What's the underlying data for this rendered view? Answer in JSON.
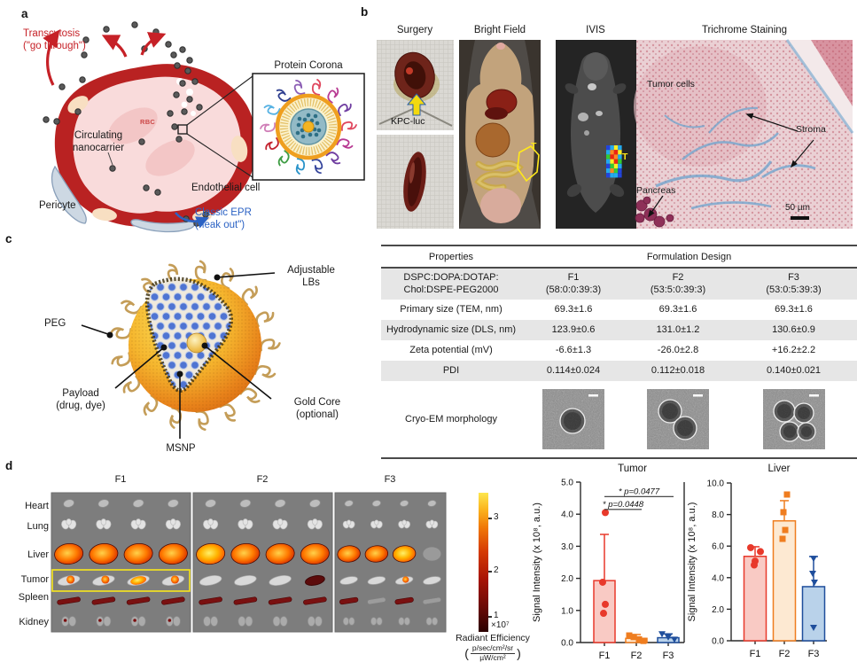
{
  "figure": {
    "panel_a_letter": "a",
    "panel_b_letter": "b",
    "panel_c_letter": "c",
    "panel_d_letter": "d"
  },
  "panels": {
    "a": {
      "transcytosis_line1": "Transcytosis",
      "transcytosis_line2": "(\"go through\")",
      "circulating_line1": "Circulating",
      "circulating_line2": "nanocarrier",
      "rbc": "RBC",
      "pericyte": "Pericyte",
      "endothelial": "Endothelial cell",
      "epr_line1": "Classic EPR",
      "epr_line2": "(\"leak out\")",
      "corona_title": "Protein Corona",
      "colors": {
        "transcytosis_red": "#c62127",
        "epr_blue": "#2b62c4",
        "vessel_red": "#b92222",
        "lumen_pink": "#f9dbdb"
      },
      "corona_colors": [
        "#e0485f",
        "#b83a92",
        "#6f3da0",
        "#35459c",
        "#2a93c9",
        "#3f9d44",
        "#c32430",
        "#d07fb8",
        "#57b2e3",
        "#2e3e8f",
        "#8c5fb5"
      ]
    },
    "b": {
      "columns": [
        "Surgery",
        "Bright Field",
        "IVIS",
        "Trichrome Staining"
      ],
      "kpc_label": "KPC-luc",
      "t_label_bf": "T",
      "t_label_ivis": "T",
      "tumor_cells": "Tumor cells",
      "stroma": "Stroma",
      "pancreas": "Pancreas",
      "scale_bar": "50 µm"
    },
    "c": {
      "adjustable_line1": "Adjustable",
      "adjustable_line2": "LBs",
      "peg": "PEG",
      "payload_line1": "Payload",
      "payload_line2": "(drug, dye)",
      "msnp": "MSNP",
      "gold_line1": "Gold Core",
      "gold_line2": "(optional)"
    },
    "table": {
      "header_properties": "Properties",
      "header_design": "Formulation Design",
      "lipid_line1": "DSPC:DOPA:DOTAP:",
      "lipid_line2": "Chol:DSPE-PEG2000",
      "formulations": [
        {
          "name": "F1",
          "ratio": "(58:0:0:39:3)"
        },
        {
          "name": "F2",
          "ratio": "(53:5:0:39:3)"
        },
        {
          "name": "F3",
          "ratio": "(53:0:5:39:3)"
        }
      ],
      "rows": [
        {
          "label": "Primary size (TEM, nm)",
          "values": [
            "69.3±1.6",
            "69.3±1.6",
            "69.3±1.6"
          ]
        },
        {
          "label": "Hydrodynamic size (DLS, nm)",
          "values": [
            "123.9±0.6",
            "131.0±1.2",
            "130.6±0.9"
          ]
        },
        {
          "label": "Zeta potential (mV)",
          "values": [
            "-6.6±1.3",
            "-26.0±2.8",
            "+16.2±2.2"
          ]
        },
        {
          "label": "PDI",
          "values": [
            "0.114±0.024",
            "0.112±0.018",
            "0.140±0.021"
          ]
        }
      ],
      "cryo_label": "Cryo-EM morphology"
    },
    "d": {
      "formulation_titles": [
        "F1",
        "F2",
        "F3"
      ],
      "organ_labels": [
        "Heart",
        "Lung",
        "Liver",
        "Tumor",
        "Spleen",
        "Kidney"
      ],
      "heat": [
        {
          "title": "F1",
          "rows": [
            [
              0,
              0,
              0,
              0
            ],
            [
              0,
              0,
              0,
              0
            ],
            [
              2,
              2,
              2,
              2
            ],
            [
              2,
              2,
              3,
              2
            ],
            [
              1,
              1,
              1,
              1
            ],
            [
              1,
              1,
              1,
              1
            ]
          ]
        },
        {
          "title": "F2",
          "rows": [
            [
              0,
              0,
              0,
              0
            ],
            [
              0,
              0,
              0,
              0
            ],
            [
              3,
              2,
              2,
              2
            ],
            [
              0,
              0,
              0,
              1
            ],
            [
              1,
              1,
              1,
              1
            ],
            [
              0,
              0,
              0,
              0
            ]
          ]
        },
        {
          "title": "F3",
          "rows": [
            [
              0,
              0,
              0,
              0
            ],
            [
              0,
              0,
              0,
              0
            ],
            [
              2,
              2,
              3,
              0
            ],
            [
              0,
              0,
              2,
              0
            ],
            [
              1,
              0,
              1,
              0
            ],
            [
              0,
              0,
              0,
              0
            ]
          ]
        }
      ],
      "colorbar": {
        "ticks": [
          "3",
          "2",
          "1"
        ],
        "exponent": "×10⁷",
        "label": "Radiant Efficiency",
        "fraction_top": "p/sec/cm²/sr",
        "fraction_bottom": "µW/cm²"
      }
    }
  },
  "chart_data": [
    {
      "type": "bar",
      "title": "Tumor",
      "ylabel": "Signal Intensity (x 10⁸, a.u.)",
      "categories": [
        "F1",
        "F2",
        "F3"
      ],
      "values": [
        1.93,
        0.13,
        0.15
      ],
      "error_top": [
        3.37,
        0.25,
        0.27
      ],
      "points": [
        [
          4.05,
          1.88,
          1.19,
          0.91
        ],
        [
          0.22,
          0.17,
          0.1,
          0.05
        ],
        [
          0.27,
          0.17,
          0.1
        ]
      ],
      "ylim": [
        0,
        5
      ],
      "ytick_step": 1,
      "grid": false,
      "bar_colors": [
        "#f9cac4",
        "#fde9d2",
        "#b9d2ea"
      ],
      "stroke_colors": [
        "#e8392b",
        "#ef7d1f",
        "#1f4e9c"
      ],
      "markers": [
        "circle",
        "square",
        "triangle"
      ],
      "significance": [
        {
          "label": "* p=0.0477",
          "from": 0,
          "to": 2,
          "y": 4.55
        },
        {
          "label": "* p=0.0448",
          "from": 0,
          "to": 1,
          "y": 4.15
        }
      ]
    },
    {
      "type": "bar",
      "title": "Liver",
      "ylabel": "Signal Intensity (x 10⁸, a.u.)",
      "categories": [
        "F1",
        "F2",
        "F3"
      ],
      "values": [
        5.35,
        7.6,
        3.43
      ],
      "error_top": [
        5.96,
        8.88,
        5.34
      ],
      "points": [
        [
          5.9,
          5.65,
          5.05,
          4.8
        ],
        [
          9.27,
          8.15,
          7.02,
          6.46
        ],
        [
          5.22,
          4.27,
          3.71,
          0.84
        ]
      ],
      "ylim": [
        0,
        10
      ],
      "ytick_step": 2,
      "grid": false,
      "bar_colors": [
        "#f9cac4",
        "#fde9d2",
        "#b9d2ea"
      ],
      "stroke_colors": [
        "#e8392b",
        "#ef7d1f",
        "#1f4e9c"
      ],
      "markers": [
        "circle",
        "square",
        "triangle"
      ]
    }
  ]
}
